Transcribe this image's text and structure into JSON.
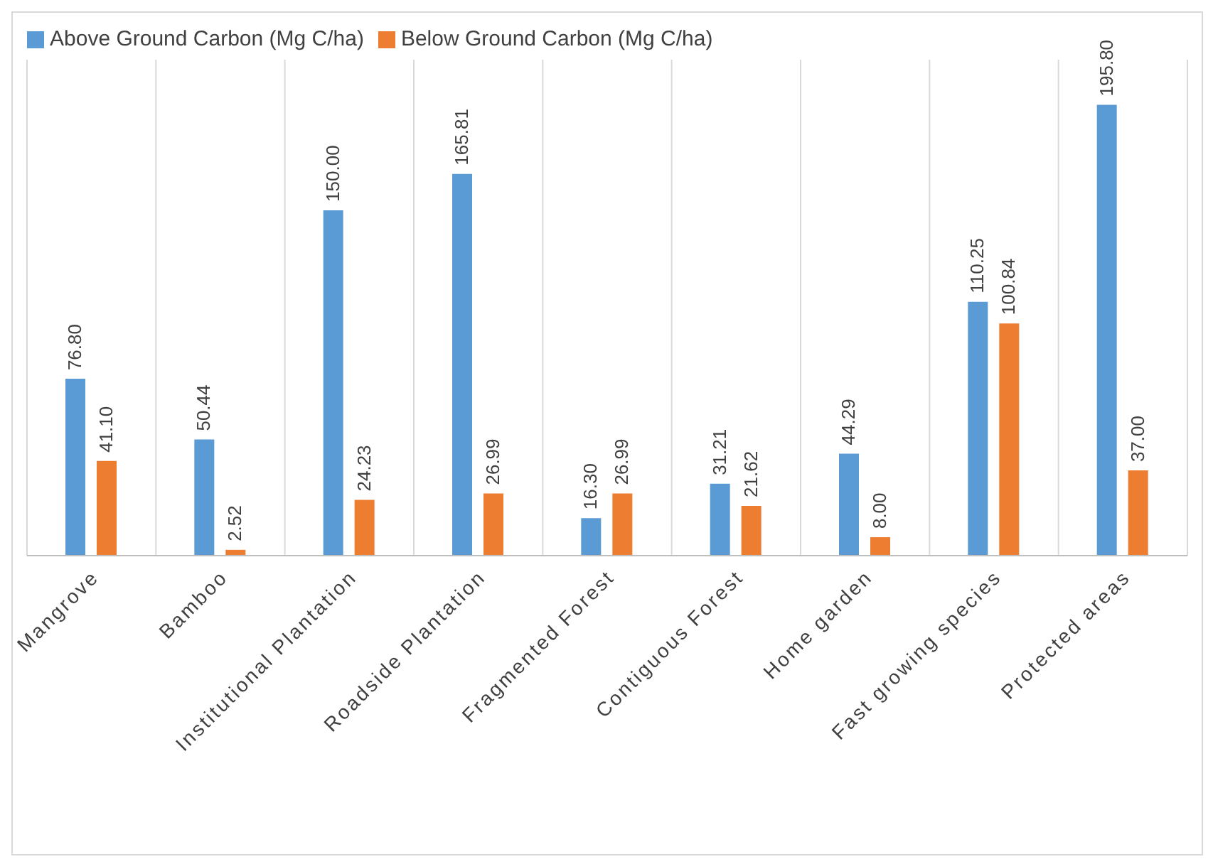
{
  "chart_data": {
    "type": "bar",
    "categories": [
      "Mangrove",
      "Bamboo",
      "Institutional Plantation",
      "Roadside Plantation",
      "Fragmented Forest",
      "Contiguous Forest",
      "Home garden",
      "Fast growing species",
      "Protected areas"
    ],
    "series": [
      {
        "name": "Above Ground Carbon (Mg C/ha)",
        "color": "#5b9bd5",
        "values": [
          76.8,
          50.44,
          150.0,
          165.81,
          16.3,
          31.21,
          44.29,
          110.25,
          195.8
        ],
        "value_labels": [
          "76.80",
          "50.44",
          "150.00",
          "165.81",
          "16.30",
          "31.21",
          "44.29",
          "110.25",
          "195.80"
        ]
      },
      {
        "name": "Below Ground Carbon (Mg C/ha)",
        "color": "#ed7d31",
        "values": [
          41.1,
          2.52,
          24.23,
          26.99,
          26.99,
          21.62,
          8.0,
          100.84,
          37.0
        ],
        "value_labels": [
          "41.10",
          "2.52",
          "24.23",
          "26.99",
          "26.99",
          "21.62",
          "8.00",
          "100.84",
          "37.00"
        ]
      }
    ],
    "grid": "x",
    "legend": "top left"
  }
}
